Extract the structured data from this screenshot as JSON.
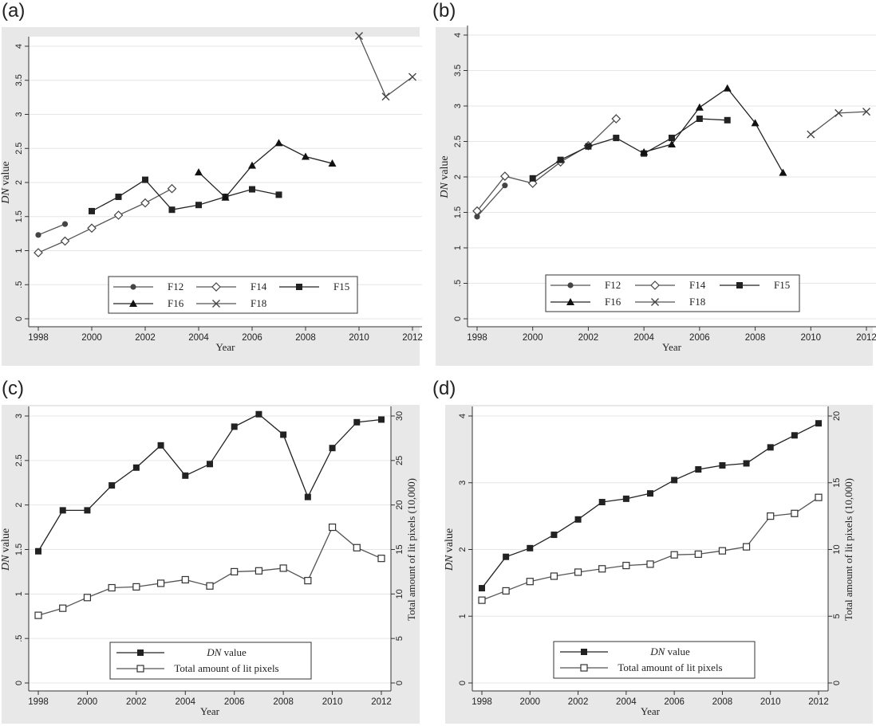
{
  "panels": [
    {
      "tag": "(a)"
    },
    {
      "tag": "(b)"
    },
    {
      "tag": "(c)"
    },
    {
      "tag": "(d)"
    }
  ],
  "chart_data": [
    {
      "type": "line",
      "panel": "(a)",
      "xlabel": "Year",
      "ylabel_italic": "DN",
      "ylabel_rest": " value",
      "xlim": [
        1998,
        2012
      ],
      "ylim": [
        0,
        4
      ],
      "xticks": [
        "1998",
        "2000",
        "2002",
        "2004",
        "2006",
        "2008",
        "2010",
        "2012"
      ],
      "yticks": [
        "0",
        ".5",
        "1",
        "1.5",
        "2",
        "2.5",
        "3",
        "3.5",
        "4"
      ],
      "grid": true,
      "legend_position": "bottom",
      "series": [
        {
          "name": "F12",
          "marker": "circle",
          "x": [
            1998,
            1999
          ],
          "y": [
            1.23,
            1.39
          ]
        },
        {
          "name": "F14",
          "marker": "diamond",
          "x": [
            1998,
            1999,
            2000,
            2001,
            2002,
            2003
          ],
          "y": [
            0.97,
            1.14,
            1.33,
            1.52,
            1.7,
            1.91
          ]
        },
        {
          "name": "F15",
          "marker": "square",
          "x": [
            2000,
            2001,
            2002,
            2003,
            2004,
            2005,
            2006,
            2007
          ],
          "y": [
            1.58,
            1.79,
            2.04,
            1.6,
            1.67,
            1.79,
            1.9,
            1.82
          ]
        },
        {
          "name": "F16",
          "marker": "triangle",
          "x": [
            2004,
            2005,
            2006,
            2007,
            2008,
            2009
          ],
          "y": [
            2.15,
            1.78,
            2.25,
            2.58,
            2.38,
            2.28
          ]
        },
        {
          "name": "F18",
          "marker": "x",
          "x": [
            2010,
            2011,
            2012
          ],
          "y": [
            4.15,
            3.26,
            3.55
          ]
        }
      ]
    },
    {
      "type": "line",
      "panel": "(b)",
      "xlabel": "Year",
      "ylabel_italic": "DN",
      "ylabel_rest": " value",
      "xlim": [
        1998,
        2012
      ],
      "ylim": [
        0,
        4
      ],
      "xticks": [
        "1998",
        "2000",
        "2002",
        "2004",
        "2006",
        "2008",
        "2010",
        "2012"
      ],
      "yticks": [
        "0",
        ".5",
        "1",
        "1.5",
        "2",
        "2.5",
        "3",
        "3.5",
        "4"
      ],
      "grid": true,
      "legend_position": "bottom",
      "series": [
        {
          "name": "F12",
          "marker": "circle",
          "x": [
            1998,
            1999
          ],
          "y": [
            1.44,
            1.88
          ]
        },
        {
          "name": "F14",
          "marker": "diamond",
          "x": [
            1998,
            1999,
            2000,
            2001,
            2002,
            2003
          ],
          "y": [
            1.52,
            2.01,
            1.91,
            2.21,
            2.44,
            2.82
          ]
        },
        {
          "name": "F15",
          "marker": "square",
          "x": [
            2000,
            2001,
            2002,
            2003,
            2004,
            2005,
            2006,
            2007
          ],
          "y": [
            1.98,
            2.24,
            2.43,
            2.55,
            2.33,
            2.55,
            2.82,
            2.8
          ]
        },
        {
          "name": "F16",
          "marker": "triangle",
          "x": [
            2004,
            2005,
            2006,
            2007,
            2008,
            2009
          ],
          "y": [
            2.35,
            2.46,
            2.98,
            3.25,
            2.76,
            2.06
          ]
        },
        {
          "name": "F18",
          "marker": "x",
          "x": [
            2010,
            2011,
            2012
          ],
          "y": [
            2.6,
            2.9,
            2.92
          ]
        }
      ]
    },
    {
      "type": "line",
      "panel": "(c)",
      "xlabel": "Year",
      "ylabel_italic": "DN",
      "ylabel_rest": " value",
      "y2label": "Total amount of lit pixels (10,000)",
      "xlim": [
        1998,
        2012
      ],
      "ylim": [
        0,
        3
      ],
      "y2lim": [
        0,
        30
      ],
      "xticks": [
        "1998",
        "2000",
        "2002",
        "2004",
        "2006",
        "2008",
        "2010",
        "2012"
      ],
      "yticks": [
        "0",
        ".5",
        "1",
        "1.5",
        "2",
        "2.5",
        "3"
      ],
      "y2ticks": [
        "0",
        "5",
        "10",
        "15",
        "20",
        "25",
        "30"
      ],
      "grid": true,
      "legend_position": "bottom",
      "series": [
        {
          "name_italic": "DN",
          "name_rest": " value",
          "marker": "square",
          "axis": "left",
          "x": [
            1998,
            1999,
            2000,
            2001,
            2002,
            2003,
            2004,
            2005,
            2006,
            2007,
            2008,
            2009,
            2010,
            2011,
            2012
          ],
          "y": [
            1.48,
            1.94,
            1.94,
            2.22,
            2.42,
            2.67,
            2.33,
            2.46,
            2.88,
            3.02,
            2.79,
            2.09,
            2.64,
            2.93,
            2.96
          ]
        },
        {
          "name": "Total amount of lit pixels",
          "marker": "open-square",
          "axis": "right",
          "x": [
            1998,
            1999,
            2000,
            2001,
            2002,
            2003,
            2004,
            2005,
            2006,
            2007,
            2008,
            2009,
            2010,
            2011,
            2012
          ],
          "y": [
            7.6,
            8.4,
            9.6,
            10.7,
            10.8,
            11.2,
            11.6,
            10.9,
            12.5,
            12.6,
            12.9,
            11.5,
            17.5,
            15.2,
            14.0
          ]
        }
      ]
    },
    {
      "type": "line",
      "panel": "(d)",
      "xlabel": "Year",
      "ylabel_italic": "DN",
      "ylabel_rest": " value",
      "y2label": "Total amount of lit pixels (10,000)",
      "xlim": [
        1998,
        2012
      ],
      "ylim": [
        0,
        4
      ],
      "y2lim": [
        0,
        20
      ],
      "xticks": [
        "1998",
        "2000",
        "2002",
        "2004",
        "2006",
        "2008",
        "2010",
        "2012"
      ],
      "yticks": [
        "0",
        "1",
        "2",
        "3",
        "4"
      ],
      "y2ticks": [
        "0",
        "5",
        "10",
        "15",
        "20"
      ],
      "grid": true,
      "legend_position": "bottom",
      "series": [
        {
          "name_italic": "DN",
          "name_rest": " value",
          "marker": "square",
          "axis": "left",
          "x": [
            1998,
            1999,
            2000,
            2001,
            2002,
            2003,
            2004,
            2005,
            2006,
            2007,
            2008,
            2009,
            2010,
            2011,
            2012
          ],
          "y": [
            1.42,
            1.89,
            2.02,
            2.22,
            2.45,
            2.71,
            2.76,
            2.84,
            3.04,
            3.2,
            3.26,
            3.29,
            3.53,
            3.71,
            3.89
          ]
        },
        {
          "name": "Total amount of lit pixels",
          "marker": "open-square",
          "axis": "right",
          "x": [
            1998,
            1999,
            2000,
            2001,
            2002,
            2003,
            2004,
            2005,
            2006,
            2007,
            2008,
            2009,
            2010,
            2011,
            2012
          ],
          "y": [
            6.2,
            6.9,
            7.6,
            8.0,
            8.3,
            8.55,
            8.8,
            8.9,
            9.6,
            9.65,
            9.9,
            10.2,
            12.5,
            12.7,
            13.9
          ]
        }
      ]
    }
  ]
}
